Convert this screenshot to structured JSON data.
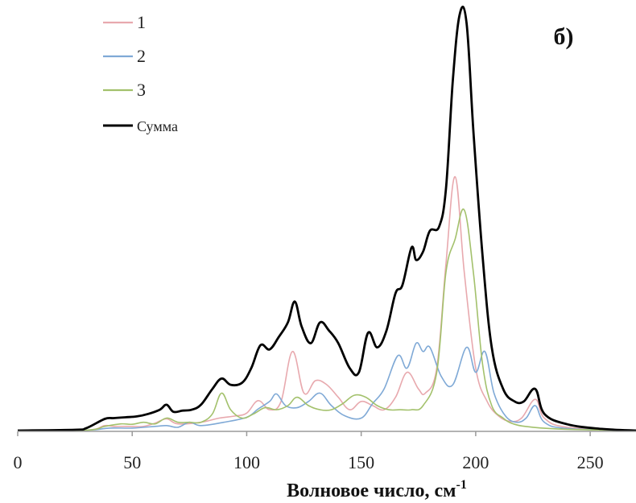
{
  "chart_data": {
    "type": "line",
    "panel_label": "б)",
    "xlabel": "Волновое число, см",
    "xlabel_sup": "-1",
    "ylabel": "",
    "xlim": [
      0,
      270
    ],
    "xticks": [
      0,
      50,
      100,
      150,
      200,
      250
    ],
    "grid": false,
    "legend_position": "top-left",
    "series": [
      {
        "name": "1",
        "color": "#e8a9ae",
        "width": 1.6,
        "x": [
          0,
          30,
          38,
          42,
          50,
          55,
          60,
          65,
          70,
          80,
          88,
          95,
          100,
          105,
          110,
          115,
          120,
          125,
          130,
          135,
          140,
          145,
          150,
          155,
          160,
          165,
          170,
          175,
          178,
          183,
          187,
          191,
          195,
          200,
          205,
          210,
          215,
          220,
          226,
          230,
          240,
          270
        ],
        "y": [
          0,
          0.001,
          0.012,
          0.01,
          0.01,
          0.01,
          0.018,
          0.028,
          0.016,
          0.02,
          0.03,
          0.035,
          0.042,
          0.072,
          0.05,
          0.07,
          0.19,
          0.09,
          0.12,
          0.11,
          0.08,
          0.05,
          0.07,
          0.06,
          0.05,
          0.08,
          0.14,
          0.1,
          0.09,
          0.15,
          0.4,
          0.61,
          0.38,
          0.15,
          0.07,
          0.035,
          0.022,
          0.03,
          0.075,
          0.03,
          0.008,
          0
        ]
      },
      {
        "name": "2",
        "color": "#7fa9d6",
        "width": 1.6,
        "x": [
          0,
          30,
          40,
          50,
          60,
          65,
          70,
          75,
          80,
          90,
          100,
          105,
          110,
          113,
          117,
          122,
          127,
          132,
          137,
          143,
          150,
          155,
          160,
          166,
          170,
          174,
          177,
          180,
          185,
          190,
          196,
          200,
          204,
          208,
          213,
          218,
          222,
          226,
          230,
          240,
          270
        ],
        "y": [
          0,
          0.001,
          0.006,
          0.006,
          0.01,
          0.012,
          0.008,
          0.02,
          0.012,
          0.02,
          0.032,
          0.052,
          0.07,
          0.088,
          0.06,
          0.055,
          0.07,
          0.09,
          0.06,
          0.035,
          0.03,
          0.065,
          0.1,
          0.18,
          0.15,
          0.21,
          0.19,
          0.2,
          0.13,
          0.11,
          0.2,
          0.14,
          0.19,
          0.09,
          0.035,
          0.02,
          0.03,
          0.06,
          0.02,
          0.005,
          0
        ]
      },
      {
        "name": "3",
        "color": "#a3c16c",
        "width": 1.6,
        "x": [
          0,
          30,
          38,
          45,
          50,
          55,
          60,
          65,
          70,
          75,
          80,
          85,
          89,
          93,
          98,
          103,
          108,
          113,
          118,
          122,
          127,
          132,
          137,
          142,
          147,
          152,
          157,
          162,
          167,
          172,
          177,
          183,
          187,
          191,
          195,
          199,
          203,
          207,
          212,
          217,
          225,
          240,
          270
        ],
        "y": [
          0,
          0.001,
          0.01,
          0.016,
          0.015,
          0.02,
          0.016,
          0.03,
          0.02,
          0.02,
          0.02,
          0.04,
          0.09,
          0.05,
          0.03,
          0.04,
          0.055,
          0.05,
          0.06,
          0.08,
          0.06,
          0.05,
          0.05,
          0.065,
          0.085,
          0.08,
          0.06,
          0.05,
          0.05,
          0.05,
          0.06,
          0.14,
          0.38,
          0.46,
          0.53,
          0.38,
          0.16,
          0.06,
          0.03,
          0.015,
          0.008,
          0.003,
          0
        ]
      },
      {
        "name": "Сумма",
        "color": "#000000",
        "width": 2.8,
        "x": [
          0,
          25,
          30,
          38,
          42,
          47,
          52,
          57,
          62,
          65,
          68,
          72,
          76,
          80,
          85,
          89,
          93,
          98,
          102,
          106,
          110,
          114,
          118,
          121,
          124,
          128,
          132,
          136,
          140,
          145,
          149,
          153,
          157,
          161,
          165,
          168,
          172,
          174,
          177,
          180,
          184,
          187,
          190,
          193,
          196,
          199,
          203,
          207,
          212,
          217,
          221,
          226,
          230,
          240,
          255,
          270
        ],
        "y": [
          0,
          0.002,
          0.006,
          0.028,
          0.03,
          0.032,
          0.034,
          0.04,
          0.05,
          0.062,
          0.045,
          0.048,
          0.05,
          0.062,
          0.1,
          0.125,
          0.11,
          0.115,
          0.15,
          0.205,
          0.195,
          0.225,
          0.26,
          0.31,
          0.25,
          0.21,
          0.26,
          0.24,
          0.21,
          0.15,
          0.14,
          0.235,
          0.2,
          0.24,
          0.33,
          0.35,
          0.44,
          0.41,
          0.43,
          0.48,
          0.49,
          0.58,
          0.84,
          1.0,
          0.98,
          0.72,
          0.42,
          0.2,
          0.1,
          0.07,
          0.07,
          0.1,
          0.04,
          0.015,
          0.004,
          0
        ]
      }
    ]
  }
}
